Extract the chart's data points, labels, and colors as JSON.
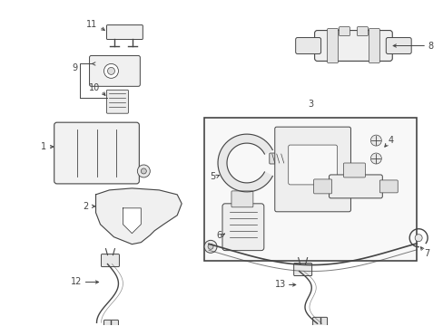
{
  "bg_color": "#ffffff",
  "lc": "#444444",
  "figsize": [
    4.89,
    3.6
  ],
  "dpi": 100,
  "font_size": 7,
  "label_arrow_lw": 0.7,
  "part_lw": 0.8
}
